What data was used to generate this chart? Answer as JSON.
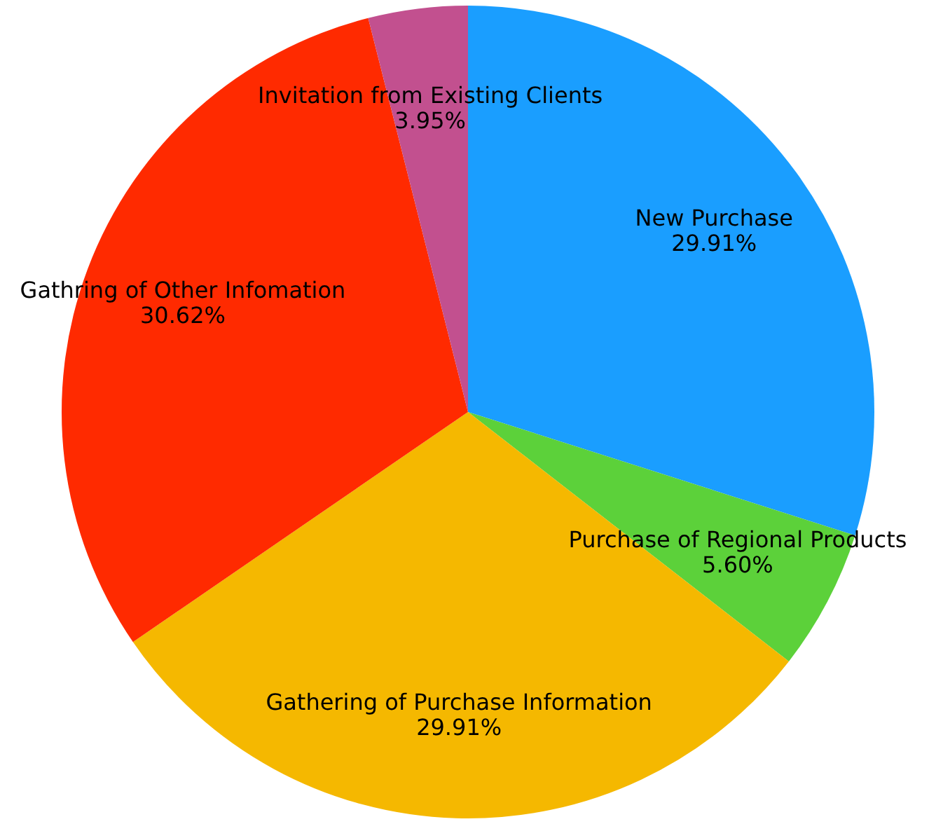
{
  "chart_data": {
    "type": "pie",
    "categories": [
      "New Purchase",
      "Purchase of Regional Products",
      "Gathering of Purchase Information",
      "Gathring of Other Infomation",
      "Invitation from Existing Clients"
    ],
    "values": [
      29.91,
      5.6,
      29.91,
      30.62,
      3.95
    ],
    "colors": [
      "#1a9eff",
      "#5cd13a",
      "#f5b800",
      "#ff2a00",
      "#c2508f"
    ],
    "value_labels": [
      "29.91%",
      "5.60%",
      "29.91%",
      "30.62%",
      "3.95%"
    ],
    "legend": false
  }
}
